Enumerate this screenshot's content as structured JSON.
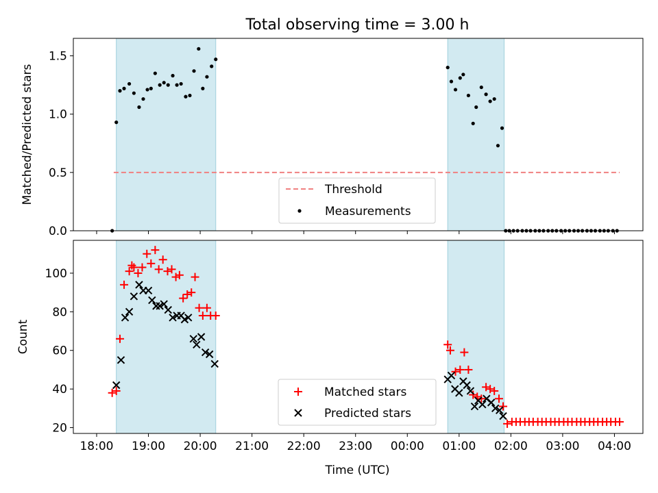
{
  "chart_data": [
    {
      "type": "scatter",
      "title": "Total observing time = 3.00 h",
      "ylabel": "Matched/Predicted stars",
      "ylim": [
        0,
        1.65
      ],
      "yticks": [
        0,
        0.5,
        1.0,
        1.5
      ],
      "ytick_labels": [
        "0.0",
        "0.5",
        "1.0",
        "1.5"
      ],
      "shaded_intervals": [
        [
          18.38,
          20.3
        ],
        [
          24.78,
          25.87
        ]
      ],
      "threshold": {
        "name": "Threshold",
        "y": 0.5,
        "x_range": [
          18.33,
          28.1
        ],
        "color": "#f08080",
        "style": "dashed"
      },
      "series": [
        {
          "name": "Measurements",
          "color": "#000000",
          "marker": "dot",
          "x": [
            18.3,
            18.38,
            18.45,
            18.53,
            18.63,
            18.72,
            18.82,
            18.9,
            18.98,
            19.05,
            19.13,
            19.22,
            19.3,
            19.38,
            19.47,
            19.55,
            19.63,
            19.72,
            19.8,
            19.88,
            19.97,
            20.05,
            20.13,
            20.22,
            20.3,
            24.78,
            24.85,
            24.93,
            25.02,
            25.08,
            25.18,
            25.27,
            25.33,
            25.43,
            25.52,
            25.6,
            25.68,
            25.75,
            25.83,
            25.9,
            25.97,
            26.05,
            26.13,
            26.22,
            26.3,
            26.38,
            26.47,
            26.55,
            26.63,
            26.72,
            26.8,
            26.88,
            26.97,
            27.05,
            27.13,
            27.22,
            27.3,
            27.38,
            27.47,
            27.55,
            27.63,
            27.72,
            27.8,
            27.88,
            27.97,
            28.05
          ],
          "y": [
            0.0,
            0.93,
            1.2,
            1.22,
            1.26,
            1.18,
            1.06,
            1.13,
            1.21,
            1.22,
            1.35,
            1.25,
            1.27,
            1.25,
            1.33,
            1.25,
            1.26,
            1.15,
            1.16,
            1.37,
            1.56,
            1.22,
            1.32,
            1.41,
            1.47,
            1.4,
            1.28,
            1.21,
            1.31,
            1.34,
            1.16,
            0.92,
            1.06,
            1.23,
            1.17,
            1.11,
            1.13,
            0.73,
            0.88,
            0.0,
            0,
            0,
            0,
            0,
            0,
            0,
            0,
            0,
            0,
            0,
            0,
            0,
            0,
            0,
            0,
            0,
            0,
            0,
            0,
            0,
            0,
            0,
            0,
            0,
            0,
            0
          ]
        }
      ],
      "legend": {
        "position": "bottom-center",
        "entries": [
          "Threshold",
          "Measurements"
        ]
      }
    },
    {
      "type": "scatter",
      "ylabel": "Count",
      "xlabel": "Time (UTC)",
      "ylim": [
        17,
        117
      ],
      "yticks": [
        20,
        40,
        60,
        80,
        100
      ],
      "ytick_labels": [
        "20",
        "40",
        "60",
        "80",
        "100"
      ],
      "xlim": [
        17.55,
        28.55
      ],
      "xticks": [
        18,
        19,
        20,
        21,
        22,
        23,
        24,
        25,
        26,
        27,
        28
      ],
      "xtick_labels": [
        "18:00",
        "19:00",
        "20:00",
        "21:00",
        "22:00",
        "23:00",
        "00:00",
        "01:00",
        "02:00",
        "03:00",
        "04:00"
      ],
      "shaded_intervals": [
        [
          18.38,
          20.3
        ],
        [
          24.78,
          25.87
        ]
      ],
      "series": [
        {
          "name": "Matched stars",
          "color": "#ff0000",
          "marker": "plus",
          "x": [
            18.3,
            18.38,
            18.45,
            18.53,
            18.63,
            18.68,
            18.72,
            18.8,
            18.88,
            18.97,
            19.05,
            19.13,
            19.2,
            19.28,
            19.37,
            19.45,
            19.53,
            19.6,
            19.67,
            19.75,
            19.83,
            19.9,
            19.98,
            20.05,
            20.13,
            20.2,
            20.3,
            24.78,
            24.83,
            24.93,
            25.02,
            25.1,
            25.18,
            25.27,
            25.35,
            25.43,
            25.52,
            25.6,
            25.68,
            25.77,
            25.85,
            25.93,
            26.02,
            26.1,
            26.18,
            26.27,
            26.35,
            26.43,
            26.52,
            26.6,
            26.68,
            26.77,
            26.85,
            26.93,
            27.02,
            27.1,
            27.18,
            27.27,
            27.35,
            27.43,
            27.52,
            27.6,
            27.68,
            27.77,
            27.85,
            27.93,
            28.02,
            28.1
          ],
          "y": [
            38,
            39,
            66,
            94,
            101,
            104,
            103,
            100,
            103,
            110,
            105,
            112,
            102,
            107,
            101,
            102,
            98,
            99,
            87,
            89,
            90,
            98,
            82,
            78,
            82,
            78,
            78,
            63,
            60,
            49,
            50,
            59,
            50,
            37,
            36,
            35,
            41,
            40,
            39,
            35,
            31,
            22,
            23,
            23,
            23,
            23,
            23,
            23,
            23,
            23,
            23,
            23,
            23,
            23,
            23,
            23,
            23,
            23,
            23,
            23,
            23,
            23,
            23,
            23,
            23,
            23,
            23,
            23
          ]
        },
        {
          "name": "Predicted stars",
          "color": "#000000",
          "marker": "x",
          "x": [
            18.38,
            18.47,
            18.55,
            18.63,
            18.72,
            18.82,
            18.9,
            19.0,
            19.07,
            19.15,
            19.22,
            19.3,
            19.38,
            19.47,
            19.55,
            19.63,
            19.7,
            19.77,
            19.87,
            19.93,
            20.02,
            20.1,
            20.18,
            20.28,
            24.78,
            24.85,
            24.92,
            25.0,
            25.08,
            25.15,
            25.22,
            25.3,
            25.37,
            25.45,
            25.53,
            25.62,
            25.7,
            25.78,
            25.85
          ],
          "y": [
            42,
            55,
            77,
            80,
            88,
            94,
            91,
            91,
            86,
            83,
            83,
            84,
            81,
            77,
            78,
            78,
            76,
            77,
            66,
            63,
            67,
            59,
            58,
            53,
            45,
            47,
            40,
            38,
            44,
            42,
            39,
            31,
            34,
            32,
            35,
            33,
            30,
            29,
            26
          ]
        }
      ],
      "legend": {
        "position": "bottom-center",
        "entries": [
          "Matched stars",
          "Predicted stars"
        ]
      }
    }
  ]
}
